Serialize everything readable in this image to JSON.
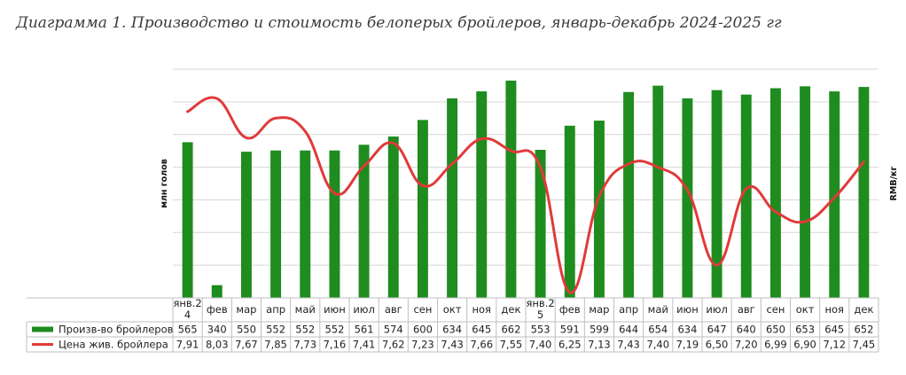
{
  "title": "Диаграмма 1. Производство и стоимость белоперых бройлеров, январь-декабрь 2024-2025 гг",
  "chart_data": {
    "type": "bar",
    "categories": [
      "янв.24",
      "фев",
      "мар",
      "апр",
      "май",
      "июн",
      "июл",
      "авг",
      "сен",
      "окт",
      "ноя",
      "дек",
      "янв.25",
      "фев",
      "мар",
      "апр",
      "май",
      "июн",
      "июл",
      "авг",
      "сен",
      "окт",
      "ноя",
      "дек"
    ],
    "category_display": [
      [
        "янв.2",
        "4"
      ],
      [
        "фев"
      ],
      [
        "мар"
      ],
      [
        "апр"
      ],
      [
        "май"
      ],
      [
        "июн"
      ],
      [
        "июл"
      ],
      [
        "авг"
      ],
      [
        "сен"
      ],
      [
        "окт"
      ],
      [
        "ноя"
      ],
      [
        "дек"
      ],
      [
        "янв.2",
        "5"
      ],
      [
        "фев"
      ],
      [
        "мар"
      ],
      [
        "апр"
      ],
      [
        "май"
      ],
      [
        "июн"
      ],
      [
        "июл"
      ],
      [
        "авг"
      ],
      [
        "сен"
      ],
      [
        "окт"
      ],
      [
        "ноя"
      ],
      [
        "дек"
      ]
    ],
    "series": [
      {
        "name": "Произв-во бройлеров",
        "type": "bar",
        "axis": "left",
        "color": "#1e8c1e",
        "values": [
          565,
          340,
          550,
          552,
          552,
          552,
          561,
          574,
          600,
          634,
          645,
          662,
          553,
          591,
          599,
          644,
          654,
          634,
          647,
          640,
          650,
          653,
          645,
          652
        ],
        "labels": [
          "565",
          "340",
          "550",
          "552",
          "552",
          "552",
          "561",
          "574",
          "600",
          "634",
          "645",
          "662",
          "553",
          "591",
          "599",
          "644",
          "654",
          "634",
          "647",
          "640",
          "650",
          "653",
          "645",
          "652"
        ]
      },
      {
        "name": "Цена жив. бройлера",
        "type": "line",
        "axis": "right",
        "color": "#e03a3a",
        "values": [
          7.91,
          8.03,
          7.67,
          7.85,
          7.73,
          7.16,
          7.41,
          7.62,
          7.23,
          7.43,
          7.66,
          7.55,
          7.4,
          6.25,
          7.13,
          7.43,
          7.4,
          7.19,
          6.5,
          7.2,
          6.99,
          6.9,
          7.12,
          7.45
        ],
        "labels": [
          "7,91",
          "8,03",
          "7,67",
          "7,85",
          "7,73",
          "7,16",
          "7,41",
          "7,62",
          "7,23",
          "7,43",
          "7,66",
          "7,55",
          "7,40",
          "6,25",
          "7,13",
          "7,43",
          "7,40",
          "7,19",
          "6,50",
          "7,20",
          "6,99",
          "6,90",
          "7,12",
          "7,45"
        ]
      }
    ],
    "ylabel": "млн голов",
    "y2label": "RMB/кг",
    "ylim": [
      320,
      680
    ],
    "y2lim": [
      6.2,
      8.3
    ],
    "grid": true,
    "legend": "in data table"
  }
}
